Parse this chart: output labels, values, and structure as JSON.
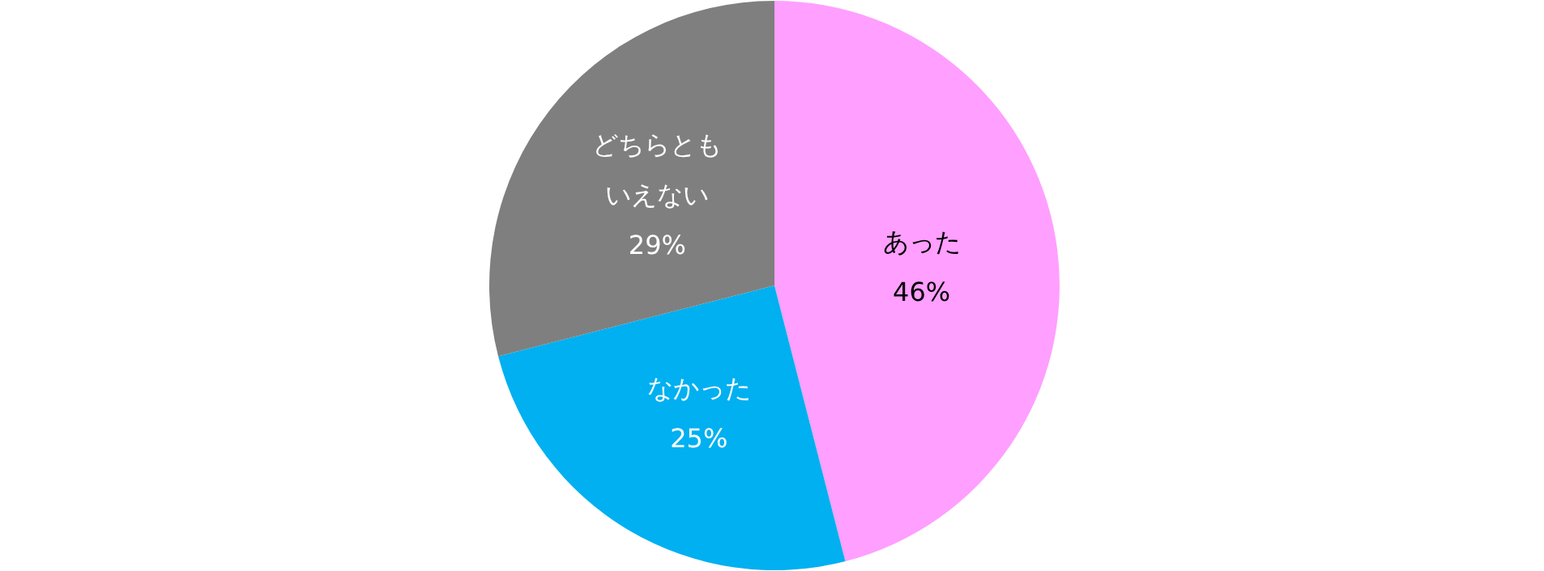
{
  "chart_data": {
    "type": "pie",
    "categories": [
      "あった",
      "なかった",
      "どちらともいえない"
    ],
    "values": [
      46,
      25,
      29
    ],
    "colors": [
      "#ff9fff",
      "#00b0f0",
      "#7f7f7f"
    ],
    "value_labels": [
      "46%",
      "25%",
      "29%"
    ]
  }
}
